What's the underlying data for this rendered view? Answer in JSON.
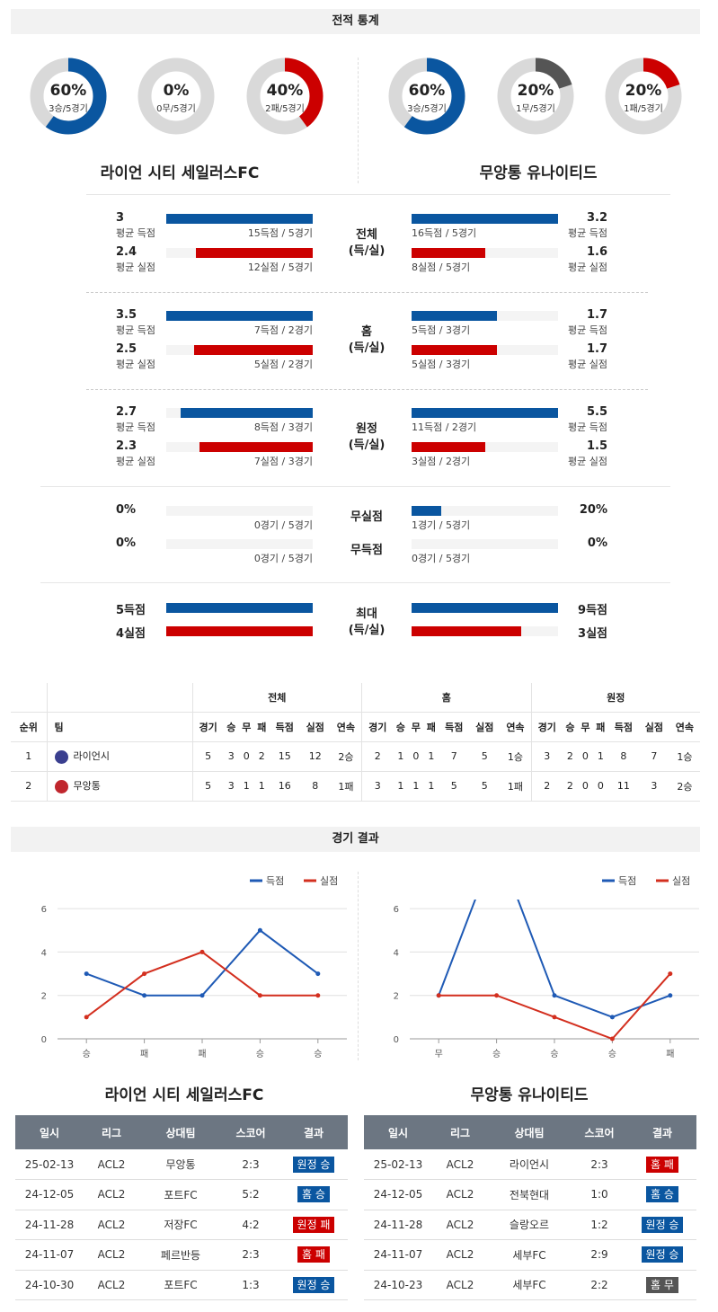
{
  "sections": {
    "stats_title": "전적 통계",
    "results_title": "경기 결과"
  },
  "colors": {
    "blue": "#0a56a0",
    "red": "#cc0000",
    "gray": "#555555",
    "track": "#d9d9d9"
  },
  "teams": {
    "home_full": "라이언 시티 세일러스FC",
    "away_full": "무앙통 유나이티드"
  },
  "donuts": [
    {
      "pct": "60%",
      "sub": "3승/5경기",
      "value": 0.6,
      "color": "#0a56a0"
    },
    {
      "pct": "0%",
      "sub": "0무/5경기",
      "value": 0.0,
      "color": "#555555"
    },
    {
      "pct": "40%",
      "sub": "2패/5경기",
      "value": 0.4,
      "color": "#cc0000"
    },
    {
      "pct": "60%",
      "sub": "3승/5경기",
      "value": 0.6,
      "color": "#0a56a0"
    },
    {
      "pct": "20%",
      "sub": "1무/5경기",
      "value": 0.2,
      "color": "#555555"
    },
    {
      "pct": "20%",
      "sub": "1패/5경기",
      "value": 0.2,
      "color": "#cc0000"
    }
  ],
  "groups": [
    {
      "label1": "전체",
      "label2": "(득/실)",
      "left": [
        {
          "value": "3",
          "sub": "평균 득점",
          "caption": "15득점 / 5경기",
          "fill": 1.0
        },
        {
          "value": "2.4",
          "sub": "평균 실점",
          "caption": "12실점 / 5경기",
          "fill": 0.8
        }
      ],
      "right": [
        {
          "value": "3.2",
          "sub": "평균 득점",
          "caption": "16득점 / 5경기",
          "fill": 1.0
        },
        {
          "value": "1.6",
          "sub": "평균 실점",
          "caption": "8실점 / 5경기",
          "fill": 0.5
        }
      ]
    },
    {
      "label1": "홈",
      "label2": "(득/실)",
      "left": [
        {
          "value": "3.5",
          "sub": "평균 득점",
          "caption": "7득점 / 2경기",
          "fill": 1.0
        },
        {
          "value": "2.5",
          "sub": "평균 실점",
          "caption": "5실점 / 2경기",
          "fill": 0.81
        }
      ],
      "right": [
        {
          "value": "1.7",
          "sub": "평균 득점",
          "caption": "5득점 / 3경기",
          "fill": 0.58
        },
        {
          "value": "1.7",
          "sub": "평균 실점",
          "caption": "5실점 / 3경기",
          "fill": 0.58
        }
      ]
    },
    {
      "label1": "원정",
      "label2": "(득/실)",
      "left": [
        {
          "value": "2.7",
          "sub": "평균 득점",
          "caption": "8득점 / 3경기",
          "fill": 0.9
        },
        {
          "value": "2.3",
          "sub": "평균 실점",
          "caption": "7실점 / 3경기",
          "fill": 0.77
        }
      ],
      "right": [
        {
          "value": "5.5",
          "sub": "평균 득점",
          "caption": "11득점 / 2경기",
          "fill": 1.0
        },
        {
          "value": "1.5",
          "sub": "평균 실점",
          "caption": "3실점 / 2경기",
          "fill": 0.5
        }
      ]
    }
  ],
  "streaks": {
    "left": [
      {
        "value": "0%",
        "caption": "0경기 / 5경기",
        "fill": 0.0
      },
      {
        "value": "0%",
        "caption": "0경기 / 5경기",
        "fill": 0.0
      }
    ],
    "right": [
      {
        "value": "20%",
        "caption": "1경기 / 5경기",
        "fill": 0.2
      },
      {
        "value": "0%",
        "caption": "0경기 / 5경기",
        "fill": 0.0
      }
    ],
    "labels": [
      "무실점",
      "무득점"
    ]
  },
  "maxima": {
    "label1": "최대",
    "label2": "(득/실)",
    "left": [
      {
        "value": "5득점",
        "fill": 1.0
      },
      {
        "value": "4실점",
        "fill": 1.0
      }
    ],
    "right": [
      {
        "value": "9득점",
        "fill": 1.0
      },
      {
        "value": "3실점",
        "fill": 0.75
      }
    ]
  },
  "standings": {
    "groups": [
      "전체",
      "홈",
      "원정"
    ],
    "rank_header": "순위",
    "team_header": "팀",
    "cols": [
      "경기",
      "승",
      "무",
      "패",
      "득점",
      "실점",
      "연속"
    ],
    "rows": [
      {
        "rank": "1",
        "team": "라이언시",
        "crest": "#3a3f8f",
        "all": [
          "5",
          "3",
          "0",
          "2",
          "15",
          "12",
          "2승"
        ],
        "home": [
          "2",
          "1",
          "0",
          "1",
          "7",
          "5",
          "1승"
        ],
        "away": [
          "3",
          "2",
          "0",
          "1",
          "8",
          "7",
          "1승"
        ]
      },
      {
        "rank": "2",
        "team": "무앙통",
        "crest": "#c0262d",
        "all": [
          "5",
          "3",
          "1",
          "1",
          "16",
          "8",
          "1패"
        ],
        "home": [
          "3",
          "1",
          "1",
          "1",
          "5",
          "5",
          "1패"
        ],
        "away": [
          "2",
          "2",
          "0",
          "0",
          "11",
          "3",
          "2승"
        ]
      }
    ]
  },
  "chart_data": [
    {
      "type": "line",
      "categories": [
        "승",
        "패",
        "패",
        "승",
        "승"
      ],
      "ylim": [
        0,
        7
      ],
      "yticks": [
        "0",
        "2",
        "4",
        "6"
      ],
      "series": [
        {
          "name": "득점",
          "values": [
            3,
            2,
            2,
            5,
            3
          ],
          "color": "#1f5ab5"
        },
        {
          "name": "실점",
          "values": [
            1,
            3,
            4,
            2,
            2
          ],
          "color": "#d32f1f"
        }
      ]
    },
    {
      "type": "line",
      "categories": [
        "무",
        "승",
        "승",
        "승",
        "패"
      ],
      "ylim": [
        0,
        7
      ],
      "yticks": [
        "0",
        "2",
        "4",
        "6"
      ],
      "series": [
        {
          "name": "득점",
          "values": [
            2,
            9,
            2,
            1,
            2
          ],
          "color": "#1f5ab5"
        },
        {
          "name": "실점",
          "values": [
            2,
            2,
            1,
            0,
            3
          ],
          "color": "#d32f1f"
        }
      ]
    }
  ],
  "results": {
    "headers": [
      "일시",
      "리그",
      "상대팀",
      "스코어",
      "결과"
    ],
    "left": [
      {
        "date": "25-02-13",
        "league": "ACL2",
        "opp": "무앙통",
        "score": "2:3",
        "result": "원정 승",
        "kind": "win"
      },
      {
        "date": "24-12-05",
        "league": "ACL2",
        "opp": "포트FC",
        "score": "5:2",
        "result": "홈 승",
        "kind": "win"
      },
      {
        "date": "24-11-28",
        "league": "ACL2",
        "opp": "저장FC",
        "score": "4:2",
        "result": "원정 패",
        "kind": "loss"
      },
      {
        "date": "24-11-07",
        "league": "ACL2",
        "opp": "페르반등",
        "score": "2:3",
        "result": "홈 패",
        "kind": "loss"
      },
      {
        "date": "24-10-30",
        "league": "ACL2",
        "opp": "포트FC",
        "score": "1:3",
        "result": "원정 승",
        "kind": "win"
      }
    ],
    "right": [
      {
        "date": "25-02-13",
        "league": "ACL2",
        "opp": "라이언시",
        "score": "2:3",
        "result": "홈 패",
        "kind": "loss"
      },
      {
        "date": "24-12-05",
        "league": "ACL2",
        "opp": "전북현대",
        "score": "1:0",
        "result": "홈 승",
        "kind": "win"
      },
      {
        "date": "24-11-28",
        "league": "ACL2",
        "opp": "슬랑오르",
        "score": "1:2",
        "result": "원정 승",
        "kind": "win"
      },
      {
        "date": "24-11-07",
        "league": "ACL2",
        "opp": "세부FC",
        "score": "2:9",
        "result": "원정 승",
        "kind": "win"
      },
      {
        "date": "24-10-23",
        "league": "ACL2",
        "opp": "세부FC",
        "score": "2:2",
        "result": "홈 무",
        "kind": "draw"
      }
    ]
  }
}
